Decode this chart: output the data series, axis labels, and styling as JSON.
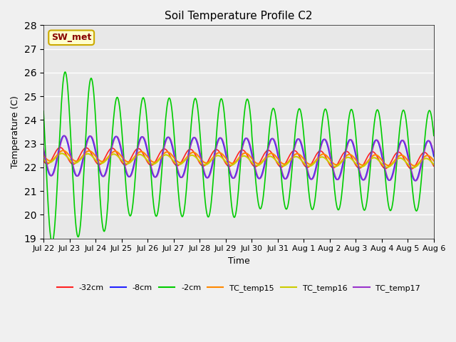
{
  "title": "Soil Temperature Profile C2",
  "xlabel": "Time",
  "ylabel": "Temperature (C)",
  "ylim": [
    19.0,
    28.0
  ],
  "yticks": [
    19.0,
    20.0,
    21.0,
    22.0,
    23.0,
    24.0,
    25.0,
    26.0,
    27.0,
    28.0
  ],
  "annotation_text": "SW_met",
  "annotation_bg": "#ffffcc",
  "annotation_border": "#ccaa00",
  "annotation_text_color": "#880000",
  "plot_bg": "#e8e8e8",
  "fig_bg": "#f0f0f0",
  "line_colors": {
    "neg32cm": "#ff2222",
    "neg8cm": "#2222ff",
    "neg2cm": "#00cc00",
    "TC_temp15": "#ff8800",
    "TC_temp16": "#cccc00",
    "TC_temp17": "#9933cc"
  },
  "day_labels": [
    "Jul 22",
    "Jul 23",
    "Jul 24",
    "Jul 25",
    "Jul 26",
    "Jul 27",
    "Jul 28",
    "Jul 29",
    "Jul 30",
    "Jul 31",
    "Aug 1",
    "Aug 2",
    "Aug 3",
    "Aug 4",
    "Aug 5",
    "Aug 6"
  ],
  "n_days": 15,
  "samples_per_day": 48
}
